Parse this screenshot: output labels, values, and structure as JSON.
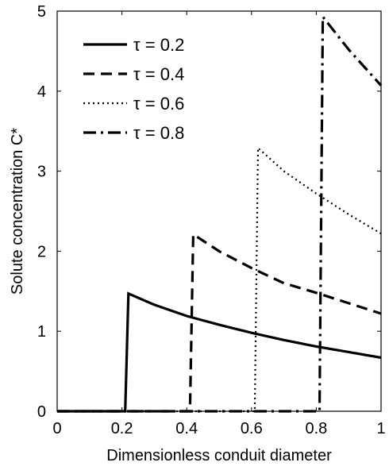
{
  "chart_data": {
    "type": "line",
    "title": "",
    "xlabel": "Dimensionless conduit diameter",
    "ylabel": "Solute concentration C*",
    "xlim": [
      0,
      1
    ],
    "ylim": [
      0,
      5
    ],
    "xticks": [
      0,
      0.2,
      0.4,
      0.6,
      0.8,
      1
    ],
    "yticks": [
      0,
      1,
      2,
      3,
      4,
      5
    ],
    "xtick_labels": [
      "0",
      "0.2",
      "0.4",
      "0.6",
      "0.8",
      "1"
    ],
    "ytick_labels": [
      "0",
      "1",
      "2",
      "3",
      "4",
      "5"
    ],
    "grid": false,
    "legend_position": "top-left",
    "series": [
      {
        "name": "τ = 0.2",
        "line_style": "solid",
        "color": "#000000",
        "x": [
          0,
          0.2,
          0.21,
          0.22,
          0.3,
          0.4,
          0.5,
          0.6,
          0.7,
          0.8,
          0.9,
          1.0
        ],
        "y": [
          0,
          0,
          0,
          1.47,
          1.33,
          1.19,
          1.08,
          0.98,
          0.89,
          0.81,
          0.74,
          0.67
        ]
      },
      {
        "name": "τ = 0.4",
        "line_style": "dashed",
        "color": "#000000",
        "x": [
          0,
          0.41,
          0.42,
          0.5,
          0.6,
          0.7,
          0.8,
          0.9,
          1.0
        ],
        "y": [
          0,
          0,
          2.21,
          2.0,
          1.79,
          1.6,
          1.48,
          1.35,
          1.22
        ]
      },
      {
        "name": "τ = 0.6",
        "line_style": "dotted",
        "color": "#000000",
        "x": [
          0,
          0.61,
          0.62,
          0.7,
          0.8,
          0.9,
          1.0
        ],
        "y": [
          0,
          0,
          3.29,
          3.0,
          2.72,
          2.46,
          2.22
        ]
      },
      {
        "name": "τ = 0.8",
        "line_style": "dashdot",
        "color": "#000000",
        "x": [
          0,
          0.81,
          0.82,
          0.9,
          1.0
        ],
        "y": [
          0,
          0,
          4.93,
          4.52,
          4.07
        ]
      }
    ]
  }
}
